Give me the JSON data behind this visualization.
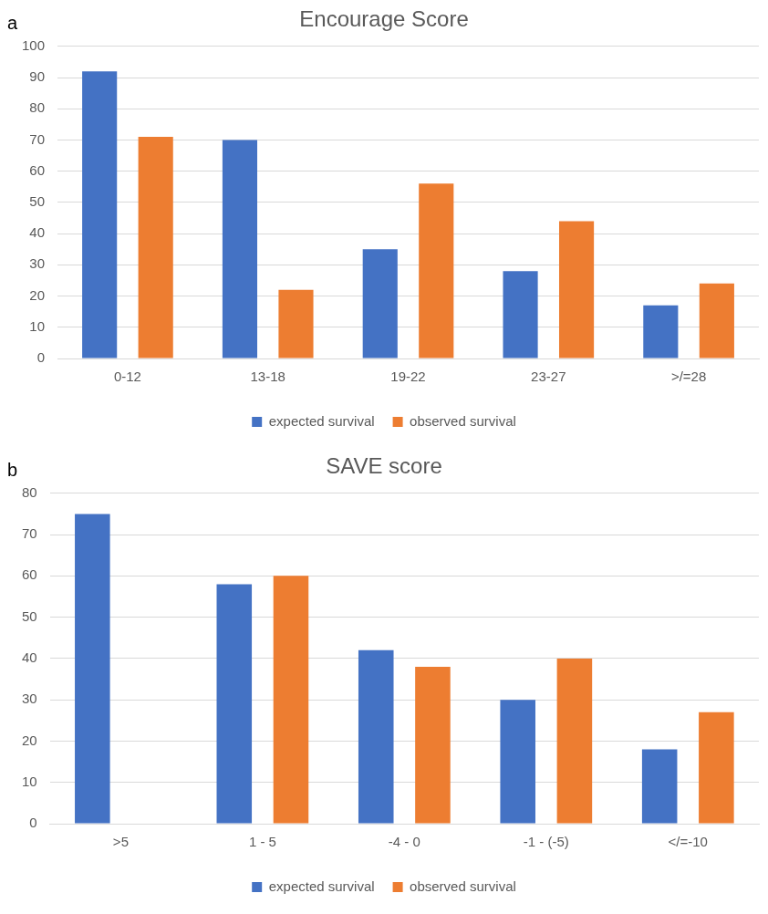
{
  "chart_data": [
    {
      "type": "bar",
      "title": "Encourage Score",
      "annotations": [
        "a"
      ],
      "categories": [
        "0-12",
        "13-18",
        "19-22",
        "23-27",
        ">/=28"
      ],
      "series": [
        {
          "name": "expected survival",
          "color": "#4472c4",
          "values": [
            92,
            70,
            35,
            28,
            17
          ]
        },
        {
          "name": "observed survival",
          "color": "#ed7d31",
          "values": [
            71,
            22,
            56,
            44,
            24
          ]
        }
      ],
      "ylim": [
        0,
        100
      ],
      "yticks": [
        0,
        10,
        20,
        30,
        40,
        50,
        60,
        70,
        80,
        90,
        100
      ],
      "grid": "y",
      "legend": "bottom"
    },
    {
      "type": "bar",
      "title": "SAVE score",
      "annotations": [
        "b"
      ],
      "categories": [
        ">5",
        "1 - 5",
        "-4 - 0",
        "-1 - (-5)",
        "</=-10"
      ],
      "series": [
        {
          "name": "expected survival",
          "color": "#4472c4",
          "values": [
            75,
            58,
            42,
            30,
            18
          ]
        },
        {
          "name": "observed survival",
          "color": "#ed7d31",
          "values": [
            null,
            60,
            38,
            40,
            27
          ]
        }
      ],
      "ylim": [
        0,
        80
      ],
      "yticks": [
        0,
        10,
        20,
        30,
        40,
        50,
        60,
        70,
        80
      ],
      "grid": "y",
      "legend": "bottom"
    }
  ]
}
